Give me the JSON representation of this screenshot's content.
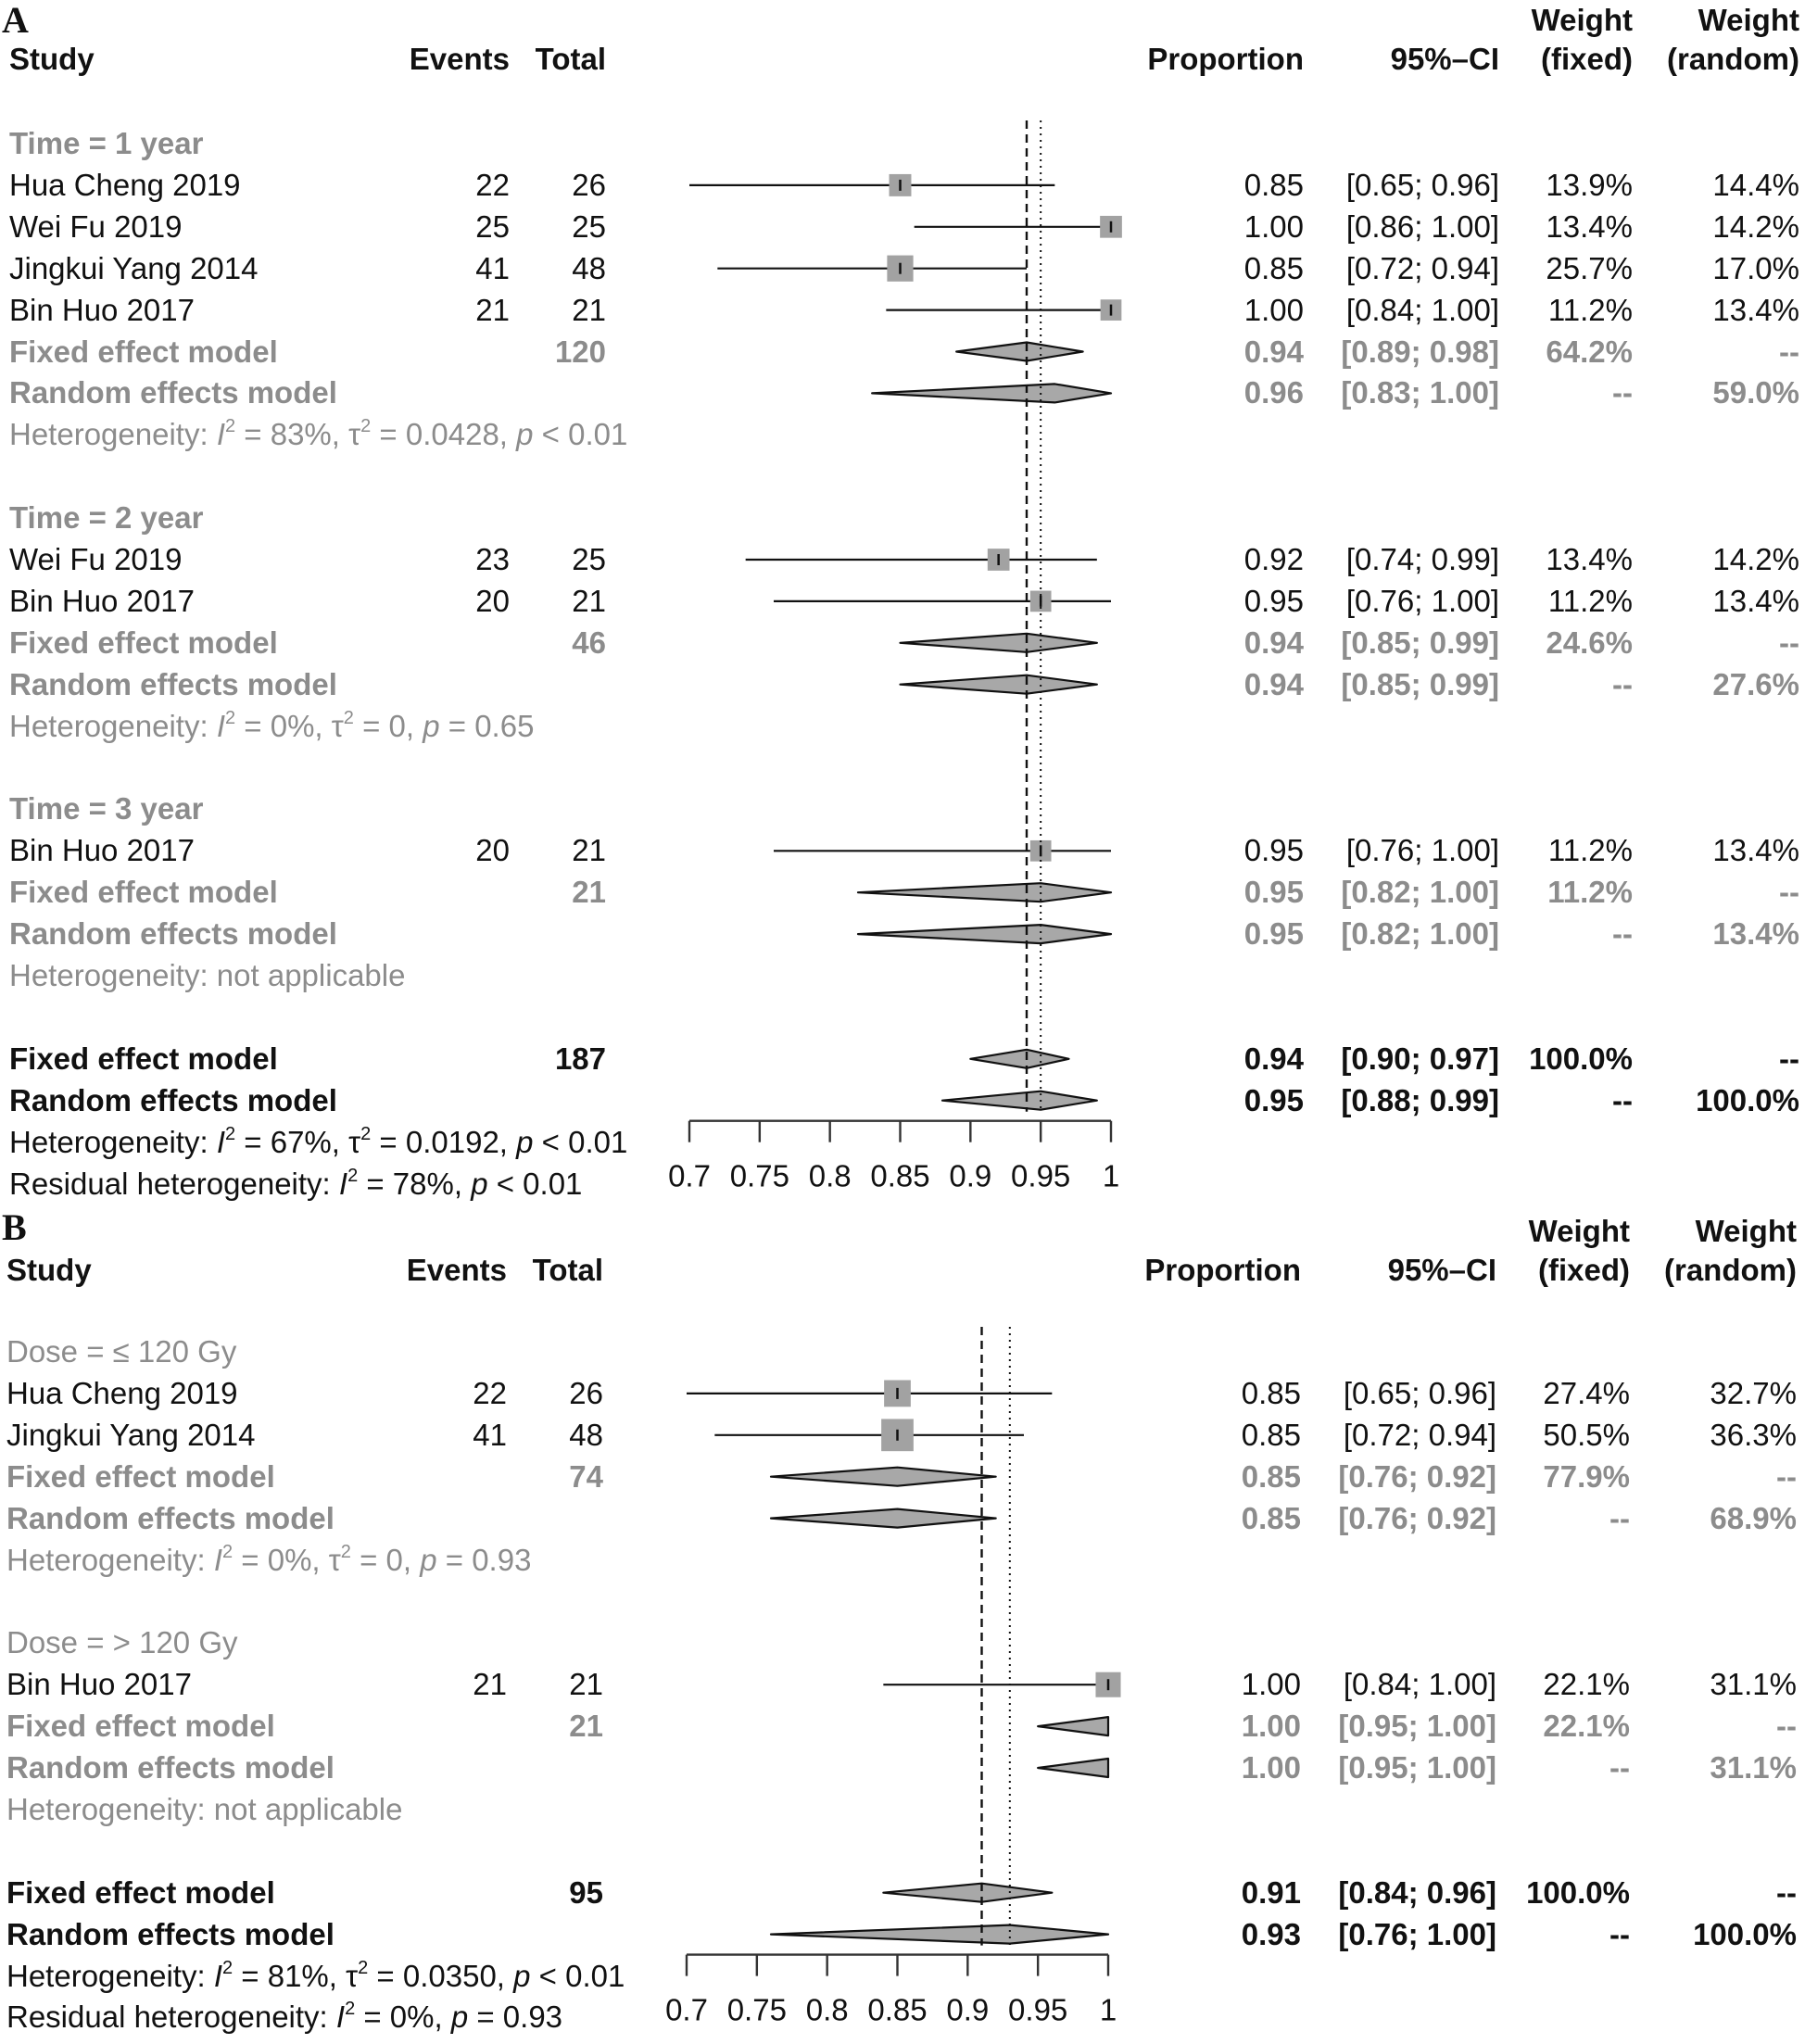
{
  "chart_data": [
    {
      "type": "forest",
      "panel": "A",
      "headers": {
        "study": "Study",
        "events": "Events",
        "total": "Total",
        "proportion": "Proportion",
        "ci": "95%–CI",
        "weight_fixed": [
          "Weight",
          "(fixed)"
        ],
        "weight_random": [
          "Weight",
          "(random)"
        ]
      },
      "axis": {
        "ticks": [
          0.7,
          0.75,
          0.8,
          0.85,
          0.9,
          0.95,
          1
        ],
        "tick_labels": [
          "0.7",
          "0.75",
          "0.8",
          "0.85",
          "0.9",
          "0.95",
          "1"
        ],
        "xlim": [
          0.7,
          1.0
        ]
      },
      "reference_lines": {
        "fixed": 0.94,
        "random": 0.95
      },
      "rows": [
        {
          "kind": "group",
          "label": "Time = 1 year"
        },
        {
          "kind": "study",
          "study": "Hua Cheng 2019",
          "events": "22",
          "total": "26",
          "prop": 0.85,
          "lo": 0.65,
          "hi": 0.96,
          "prop_txt": "0.85",
          "ci_txt": "[0.65; 0.96]",
          "wf": "13.9%",
          "wr": "14.4%",
          "weight": 13.9
        },
        {
          "kind": "study",
          "study": "Wei Fu 2019",
          "events": "25",
          "total": "25",
          "prop": 1.0,
          "lo": 0.86,
          "hi": 1.0,
          "prop_txt": "1.00",
          "ci_txt": "[0.86; 1.00]",
          "wf": "13.4%",
          "wr": "14.2%",
          "weight": 13.4
        },
        {
          "kind": "study",
          "study": "Jingkui Yang 2014",
          "events": "41",
          "total": "48",
          "prop": 0.85,
          "lo": 0.72,
          "hi": 0.94,
          "prop_txt": "0.85",
          "ci_txt": "[0.72; 0.94]",
          "wf": "25.7%",
          "wr": "17.0%",
          "weight": 25.7
        },
        {
          "kind": "study",
          "study": "Bin Huo 2017",
          "events": "21",
          "total": "21",
          "prop": 1.0,
          "lo": 0.84,
          "hi": 1.0,
          "prop_txt": "1.00",
          "ci_txt": "[0.84; 1.00]",
          "wf": "11.2%",
          "wr": "13.4%",
          "weight": 11.2
        },
        {
          "kind": "subfixed",
          "study": "Fixed effect model",
          "total": "120",
          "prop": 0.94,
          "lo": 0.89,
          "hi": 0.98,
          "prop_txt": "0.94",
          "ci_txt": "[0.89; 0.98]",
          "wf": "64.2%",
          "wr": "--"
        },
        {
          "kind": "subrandom",
          "study": "Random effects model",
          "prop": 0.96,
          "lo": 0.83,
          "hi": 1.0,
          "prop_txt": "0.96",
          "ci_txt": "[0.83; 1.00]",
          "wf": "--",
          "wr": "59.0%"
        },
        {
          "kind": "het",
          "prefix": "Heterogeneity: ",
          "I2": "83%",
          "tau2": "0.0428",
          "p": "< 0.01"
        },
        {
          "kind": "blank"
        },
        {
          "kind": "group",
          "label": "Time = 2 year"
        },
        {
          "kind": "study",
          "study": "Wei Fu 2019",
          "events": "23",
          "total": "25",
          "prop": 0.92,
          "lo": 0.74,
          "hi": 0.99,
          "prop_txt": "0.92",
          "ci_txt": "[0.74; 0.99]",
          "wf": "13.4%",
          "wr": "14.2%",
          "weight": 13.4
        },
        {
          "kind": "study",
          "study": "Bin Huo 2017",
          "events": "20",
          "total": "21",
          "prop": 0.95,
          "lo": 0.76,
          "hi": 1.0,
          "prop_txt": "0.95",
          "ci_txt": "[0.76; 1.00]",
          "wf": "11.2%",
          "wr": "13.4%",
          "weight": 11.2
        },
        {
          "kind": "subfixed",
          "study": "Fixed effect model",
          "total": "46",
          "prop": 0.94,
          "lo": 0.85,
          "hi": 0.99,
          "prop_txt": "0.94",
          "ci_txt": "[0.85; 0.99]",
          "wf": "24.6%",
          "wr": "--"
        },
        {
          "kind": "subrandom",
          "study": "Random effects model",
          "prop": 0.94,
          "lo": 0.85,
          "hi": 0.99,
          "prop_txt": "0.94",
          "ci_txt": "[0.85; 0.99]",
          "wf": "--",
          "wr": "27.6%"
        },
        {
          "kind": "het",
          "prefix": "Heterogeneity: ",
          "I2": "0%",
          "tau2": "0",
          "p": "= 0.65"
        },
        {
          "kind": "blank"
        },
        {
          "kind": "group",
          "label": "Time = 3 year"
        },
        {
          "kind": "study",
          "study": "Bin Huo 2017",
          "events": "20",
          "total": "21",
          "prop": 0.95,
          "lo": 0.76,
          "hi": 1.0,
          "prop_txt": "0.95",
          "ci_txt": "[0.76; 1.00]",
          "wf": "11.2%",
          "wr": "13.4%",
          "weight": 11.2
        },
        {
          "kind": "subfixed",
          "study": "Fixed effect model",
          "total": "21",
          "prop": 0.95,
          "lo": 0.82,
          "hi": 1.0,
          "prop_txt": "0.95",
          "ci_txt": "[0.82; 1.00]",
          "wf": "11.2%",
          "wr": "--"
        },
        {
          "kind": "subrandom",
          "study": "Random effects model",
          "prop": 0.95,
          "lo": 0.82,
          "hi": 1.0,
          "prop_txt": "0.95",
          "ci_txt": "[0.82; 1.00]",
          "wf": "--",
          "wr": "13.4%"
        },
        {
          "kind": "hettext",
          "text": "Heterogeneity: not applicable"
        },
        {
          "kind": "blank"
        },
        {
          "kind": "fixed",
          "study": "Fixed effect model",
          "total": "187",
          "prop": 0.94,
          "lo": 0.9,
          "hi": 0.97,
          "prop_txt": "0.94",
          "ci_txt": "[0.90; 0.97]",
          "wf": "100.0%",
          "wr": "--"
        },
        {
          "kind": "random",
          "study": "Random effects model",
          "prop": 0.95,
          "lo": 0.88,
          "hi": 0.99,
          "prop_txt": "0.95",
          "ci_txt": "[0.88; 0.99]",
          "wf": "--",
          "wr": "100.0%"
        },
        {
          "kind": "hetall",
          "prefix": "Heterogeneity: ",
          "I2": "67%",
          "tau2": "0.0192",
          "p": "< 0.01"
        },
        {
          "kind": "resid",
          "prefix": "Residual heterogeneity: ",
          "I2": "78%",
          "p": "< 0.01"
        }
      ]
    },
    {
      "type": "forest",
      "panel": "B",
      "headers": {
        "study": "Study",
        "events": "Events",
        "total": "Total",
        "proportion": "Proportion",
        "ci": "95%–CI",
        "weight_fixed": [
          "Weight",
          "(fixed)"
        ],
        "weight_random": [
          "Weight",
          "(random)"
        ]
      },
      "axis": {
        "ticks": [
          0.7,
          0.75,
          0.8,
          0.85,
          0.9,
          0.95,
          1
        ],
        "tick_labels": [
          "0.7",
          "0.75",
          "0.8",
          "0.85",
          "0.9",
          "0.95",
          "1"
        ],
        "xlim": [
          0.7,
          1.0
        ]
      },
      "reference_lines": {
        "fixed": 0.91,
        "random": 0.93
      },
      "rows": [
        {
          "kind": "group",
          "label": "Dose = ≤ 120 Gy"
        },
        {
          "kind": "study",
          "study": "Hua Cheng 2019",
          "events": "22",
          "total": "26",
          "prop": 0.85,
          "lo": 0.65,
          "hi": 0.96,
          "prop_txt": "0.85",
          "ci_txt": "[0.65; 0.96]",
          "wf": "27.4%",
          "wr": "32.7%",
          "weight": 27.4
        },
        {
          "kind": "study",
          "study": "Jingkui Yang 2014",
          "events": "41",
          "total": "48",
          "prop": 0.85,
          "lo": 0.72,
          "hi": 0.94,
          "prop_txt": "0.85",
          "ci_txt": "[0.72; 0.94]",
          "wf": "50.5%",
          "wr": "36.3%",
          "weight": 50.5
        },
        {
          "kind": "subfixed",
          "study": "Fixed effect model",
          "total": "74",
          "prop": 0.85,
          "lo": 0.76,
          "hi": 0.92,
          "prop_txt": "0.85",
          "ci_txt": "[0.76; 0.92]",
          "wf": "77.9%",
          "wr": "--"
        },
        {
          "kind": "subrandom",
          "study": "Random effects model",
          "prop": 0.85,
          "lo": 0.76,
          "hi": 0.92,
          "prop_txt": "0.85",
          "ci_txt": "[0.76; 0.92]",
          "wf": "--",
          "wr": "68.9%"
        },
        {
          "kind": "het",
          "prefix": "Heterogeneity: ",
          "I2": "0%",
          "tau2": "0",
          "p": "= 0.93"
        },
        {
          "kind": "blank"
        },
        {
          "kind": "group",
          "label": "Dose = > 120 Gy"
        },
        {
          "kind": "study",
          "study": "Bin Huo 2017",
          "events": "21",
          "total": "21",
          "prop": 1.0,
          "lo": 0.84,
          "hi": 1.0,
          "prop_txt": "1.00",
          "ci_txt": "[0.84; 1.00]",
          "wf": "22.1%",
          "wr": "31.1%",
          "weight": 22.1
        },
        {
          "kind": "subfixed",
          "study": "Fixed effect model",
          "total": "21",
          "prop": 1.0,
          "lo": 0.95,
          "hi": 1.0,
          "prop_txt": "1.00",
          "ci_txt": "[0.95; 1.00]",
          "wf": "22.1%",
          "wr": "--"
        },
        {
          "kind": "subrandom",
          "study": "Random effects model",
          "prop": 1.0,
          "lo": 0.95,
          "hi": 1.0,
          "prop_txt": "1.00",
          "ci_txt": "[0.95; 1.00]",
          "wf": "--",
          "wr": "31.1%"
        },
        {
          "kind": "hettext",
          "text": "Heterogeneity: not applicable"
        },
        {
          "kind": "blank"
        },
        {
          "kind": "fixed",
          "study": "Fixed effect model",
          "total": "95",
          "prop": 0.91,
          "lo": 0.84,
          "hi": 0.96,
          "prop_txt": "0.91",
          "ci_txt": "[0.84; 0.96]",
          "wf": "100.0%",
          "wr": "--"
        },
        {
          "kind": "random",
          "study": "Random effects model",
          "prop": 0.93,
          "lo": 0.76,
          "hi": 1.0,
          "prop_txt": "0.93",
          "ci_txt": "[0.76; 1.00]",
          "wf": "--",
          "wr": "100.0%"
        },
        {
          "kind": "hetall",
          "prefix": "Heterogeneity: ",
          "I2": "81%",
          "tau2": "0.0350",
          "p": "< 0.01"
        },
        {
          "kind": "resid",
          "prefix": "Residual heterogeneity: ",
          "I2": "0%",
          "p": "= 0.93"
        }
      ]
    }
  ],
  "colors": {
    "text": "#111111",
    "muted": "#8c8c8c",
    "square": "#a2a2a2",
    "diamond": "#a8a8a8",
    "line": "#111111"
  }
}
